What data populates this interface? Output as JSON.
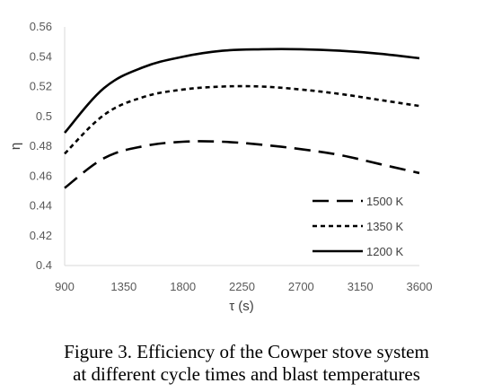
{
  "chart_data": {
    "type": "line",
    "title": "",
    "xlabel": "τ (s)",
    "ylabel": "η",
    "x": [
      900,
      1200,
      1500,
      1800,
      2100,
      2400,
      2700,
      3000,
      3300,
      3600
    ],
    "xticks": [
      "900",
      "1350",
      "1800",
      "2250",
      "2700",
      "3150",
      "3600"
    ],
    "yticks": [
      "0.4",
      "0.42",
      "0.44",
      "0.46",
      "0.48",
      "0.5",
      "0.52",
      "0.54",
      "0.56"
    ],
    "xlim": [
      900,
      3600
    ],
    "ylim": [
      0.4,
      0.56
    ],
    "grid": false,
    "legend_position": "bottom-right",
    "series": [
      {
        "name": "1500 K",
        "dash": "long-dash",
        "color": "#000000",
        "values": [
          0.452,
          0.472,
          0.48,
          0.483,
          0.483,
          0.481,
          0.478,
          0.474,
          0.468,
          0.462
        ]
      },
      {
        "name": "1350 K",
        "dash": "short-dash",
        "color": "#000000",
        "values": [
          0.475,
          0.501,
          0.513,
          0.518,
          0.52,
          0.52,
          0.518,
          0.515,
          0.511,
          0.507
        ]
      },
      {
        "name": "1200 K",
        "dash": "solid",
        "color": "#000000",
        "values": [
          0.489,
          0.519,
          0.533,
          0.54,
          0.544,
          0.545,
          0.545,
          0.544,
          0.542,
          0.539
        ]
      }
    ]
  },
  "caption": {
    "line1": "Figure 3. Efficiency of the Cowper stove system",
    "line2": "at different cycle times and blast temperatures"
  }
}
